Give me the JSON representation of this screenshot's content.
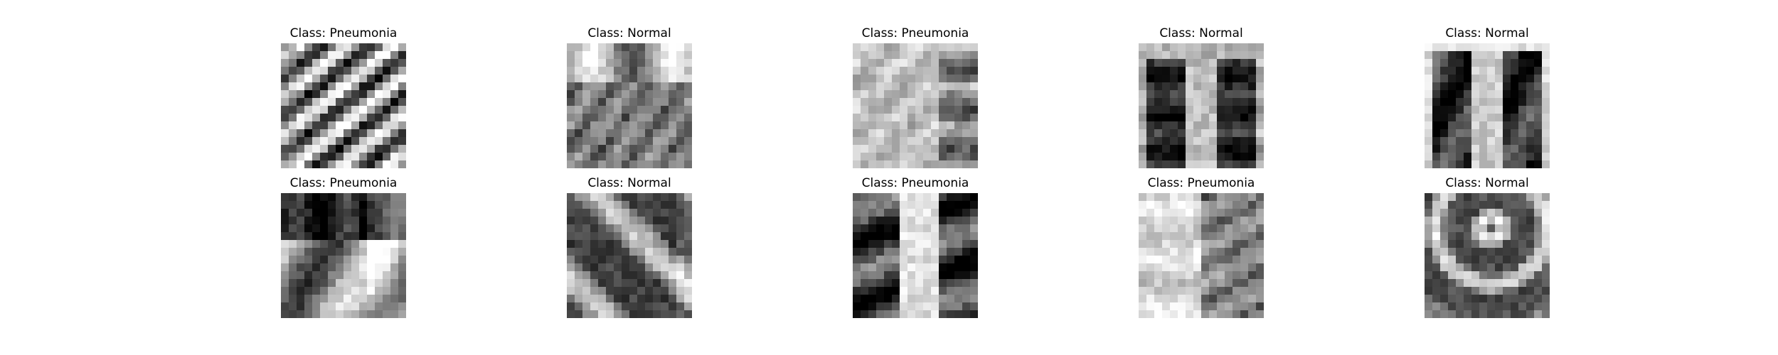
{
  "figure": {
    "panels": [
      {
        "title": "Class: Pneumonia",
        "image": "chest x-ray, grayscale pixelated thumbnail, bright diagonal rib stripes"
      },
      {
        "title": "Class: Normal",
        "image": "chest x-ray, grayscale pixelated thumbnail, dark lower field with bright upper band"
      },
      {
        "title": "Class: Pneumonia",
        "image": "chest x-ray, grayscale pixelated thumbnail, mostly light with dark right region"
      },
      {
        "title": "Class: Normal",
        "image": "chest x-ray, grayscale pixelated thumbnail, dark lungs with bright center spine"
      },
      {
        "title": "Class: Normal",
        "image": "chest x-ray, grayscale pixelated thumbnail, dark lungs with light mediastinum"
      },
      {
        "title": "Class: Pneumonia",
        "image": "chest x-ray, grayscale pixelated thumbnail, dark top, bright lower left"
      },
      {
        "title": "Class: Normal",
        "image": "chest x-ray, grayscale pixelated thumbnail, dark lungs with bright diagonal bands"
      },
      {
        "title": "Class: Pneumonia",
        "image": "chest x-ray, grayscale pixelated thumbnail, light center with dark lateral lungs"
      },
      {
        "title": "Class: Pneumonia",
        "image": "chest x-ray, grayscale pixelated thumbnail, mostly light with dark right lung"
      },
      {
        "title": "Class: Normal",
        "image": "chest x-ray, grayscale pixelated thumbnail, dark lungs with bright curving ribs"
      }
    ]
  }
}
